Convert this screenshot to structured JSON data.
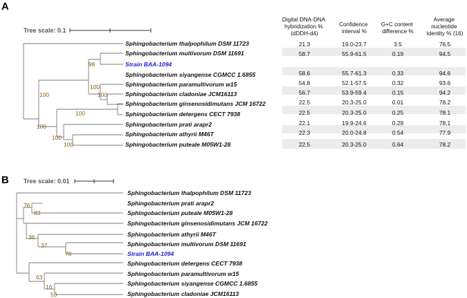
{
  "panelA": {
    "letter": "A",
    "tree_scale": "Tree scale: 0.1",
    "headers": [
      [
        "Digital DNA-DNA",
        "hybridization %",
        "(dDDH-d4)"
      ],
      [
        "Confidence",
        "interval %"
      ],
      [
        "G+C content",
        "difference %"
      ],
      [
        "Average",
        "nucleotide",
        "Identity %  (16)"
      ]
    ],
    "taxa": [
      {
        "name": "Sphingobacterium thalpophilum DSM 11723",
        "highlight": false,
        "dddh": "21.3",
        "ci": "19.0-23.7",
        "gc": "3.5",
        "ani": "76.5"
      },
      {
        "name": "Sphingobacterium multivorum DSM 11691",
        "highlight": false,
        "dddh": "58.7",
        "ci": "55.9-61.5",
        "gc": "0.19",
        "ani": "94.5"
      },
      {
        "name": "Strain BAA-1094",
        "highlight": true,
        "dddh": "",
        "ci": "",
        "gc": "",
        "ani": ""
      },
      {
        "name": "Sphingobacterium siyangense CGMCC 1.6855",
        "highlight": false,
        "dddh": "58.6",
        "ci": "55.7-61.3",
        "gc": "0.33",
        "ani": "94.6"
      },
      {
        "name": "Sphingobacterium paramultivorum w15",
        "highlight": false,
        "dddh": "54.8",
        "ci": "52.1-57.5",
        "gc": "0.32",
        "ani": "93.6"
      },
      {
        "name": "Sphingobacterium cladoniae JCM16113",
        "highlight": false,
        "dddh": "56.7",
        "ci": "53.9-59.4",
        "gc": "0.15",
        "ani": "94.2"
      },
      {
        "name": "Sphingobacterium ginsenosidimutans JCM 16722",
        "highlight": false,
        "dddh": "22.5",
        "ci": "20.3-25.0",
        "gc": "0.01",
        "ani": "78.2"
      },
      {
        "name": "Sphingobacterium detergens CECT 7938",
        "highlight": false,
        "dddh": "22.5",
        "ci": "20.3-25.0",
        "gc": "0.25",
        "ani": "78.1"
      },
      {
        "name": "Sphingobacterium prati arapr2",
        "highlight": false,
        "dddh": "22.1",
        "ci": "19.9-24.6",
        "gc": "0.29",
        "ani": "78.1"
      },
      {
        "name": "Sphingobacterium athyrii M46T",
        "highlight": false,
        "dddh": "22.3",
        "ci": "20.0-24.8",
        "gc": "0.54",
        "ani": "77.9"
      },
      {
        "name": "Sphingobacterium puteale M05W1-28",
        "highlight": false,
        "dddh": "22.5",
        "ci": "20.3-25.0",
        "gc": "0.64",
        "ani": "78.2"
      }
    ],
    "bootstrap": [
      "98",
      "100",
      "100",
      "100",
      "100",
      "100",
      "100",
      "100"
    ]
  },
  "panelB": {
    "letter": "B",
    "tree_scale": "Tree scale: 0.01",
    "taxa": [
      {
        "name": "Sphingobacterium thalpophilum DSM 11723",
        "highlight": false
      },
      {
        "name": "Sphingobacterium prati arapr2",
        "highlight": false
      },
      {
        "name": "Sphingobacterium puteale M05W1-28",
        "highlight": false
      },
      {
        "name": "Sphingobacterium ginsenosidimutans JCM 16722",
        "highlight": false
      },
      {
        "name": "Sphingobacterium athyrii M46T",
        "highlight": false
      },
      {
        "name": "Sphingobacterium multivorum DSM 11691",
        "highlight": false
      },
      {
        "name": "Strain BAA-1094",
        "highlight": true
      },
      {
        "name": "Sphingobacterium detergens CECT 7938",
        "highlight": false
      },
      {
        "name": "Sphingobacterium paramultivorum w15",
        "highlight": false
      },
      {
        "name": "Sphingobacterium siyangense CGMCC 1.6855",
        "highlight": false
      },
      {
        "name": "Sphingobacterium cladoniae JCM16113",
        "highlight": false
      }
    ],
    "bootstrap": [
      "76",
      "83",
      "36",
      "37",
      "78",
      "63",
      "16",
      "53"
    ]
  }
}
